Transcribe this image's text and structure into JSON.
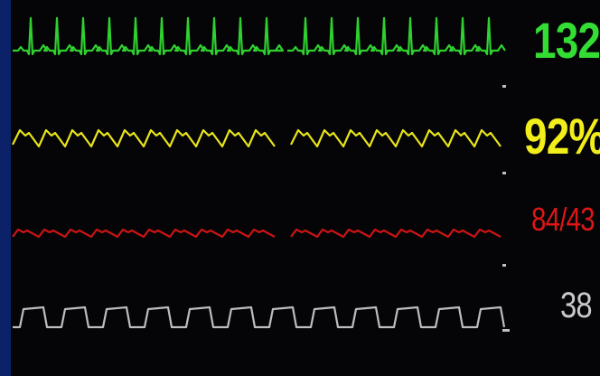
{
  "monitor": {
    "vitals": [
      {
        "id": "hr",
        "value": "132",
        "color": "#33dd33"
      },
      {
        "id": "spo2",
        "value": "92%",
        "color": "#f2ee1a"
      },
      {
        "id": "bp",
        "value": "84/43",
        "color": "#dd1616"
      },
      {
        "id": "etco2",
        "value": "38",
        "color": "#c8c8c8"
      }
    ],
    "colors": {
      "frame": "#0b2168",
      "screen": "#050507"
    }
  }
}
